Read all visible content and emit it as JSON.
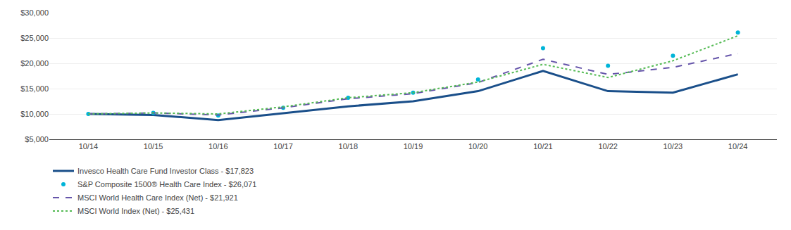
{
  "chart_data": {
    "type": "line",
    "categories": [
      "10/14",
      "10/15",
      "10/16",
      "10/17",
      "10/18",
      "10/19",
      "10/20",
      "10/21",
      "10/22",
      "10/23",
      "10/24"
    ],
    "series": [
      {
        "name": "Invesco Health Care Fund Investor Class - $17,823",
        "color": "#1a4f8a",
        "line_style": "solid",
        "values": [
          10000,
          9800,
          8800,
          10200,
          11500,
          12500,
          14500,
          18500,
          14500,
          14200,
          17823
        ]
      },
      {
        "name": "S&P Composite 1500® Health Care Index - $26,071",
        "color": "#00b4d8",
        "line_style": "none",
        "marker": "circle",
        "values": [
          10000,
          10200,
          9700,
          11200,
          13200,
          14200,
          16800,
          23000,
          19500,
          21500,
          26071
        ]
      },
      {
        "name": "MSCI World Health Care Index (Net) - $21,921",
        "color": "#6655aa",
        "line_style": "dashed",
        "values": [
          10000,
          10200,
          9800,
          11200,
          13000,
          14000,
          16200,
          20800,
          17800,
          19200,
          21921
        ]
      },
      {
        "name": "MSCI World Index (Net) - $25,431",
        "color": "#55bb55",
        "line_style": "dotted",
        "values": [
          10000,
          10200,
          10000,
          11400,
          13200,
          14200,
          16300,
          19800,
          17200,
          20500,
          25431
        ]
      }
    ],
    "ylim": [
      5000,
      30000
    ],
    "yticks": [
      {
        "value": 5000,
        "label": "$5,000"
      },
      {
        "value": 10000,
        "label": "$10,000"
      },
      {
        "value": 15000,
        "label": "$15,000"
      },
      {
        "value": 20000,
        "label": "$20,000"
      },
      {
        "value": 25000,
        "label": "$25,000"
      },
      {
        "value": 30000,
        "label": "$30,000"
      }
    ],
    "grid": true,
    "legend": "bottom"
  }
}
